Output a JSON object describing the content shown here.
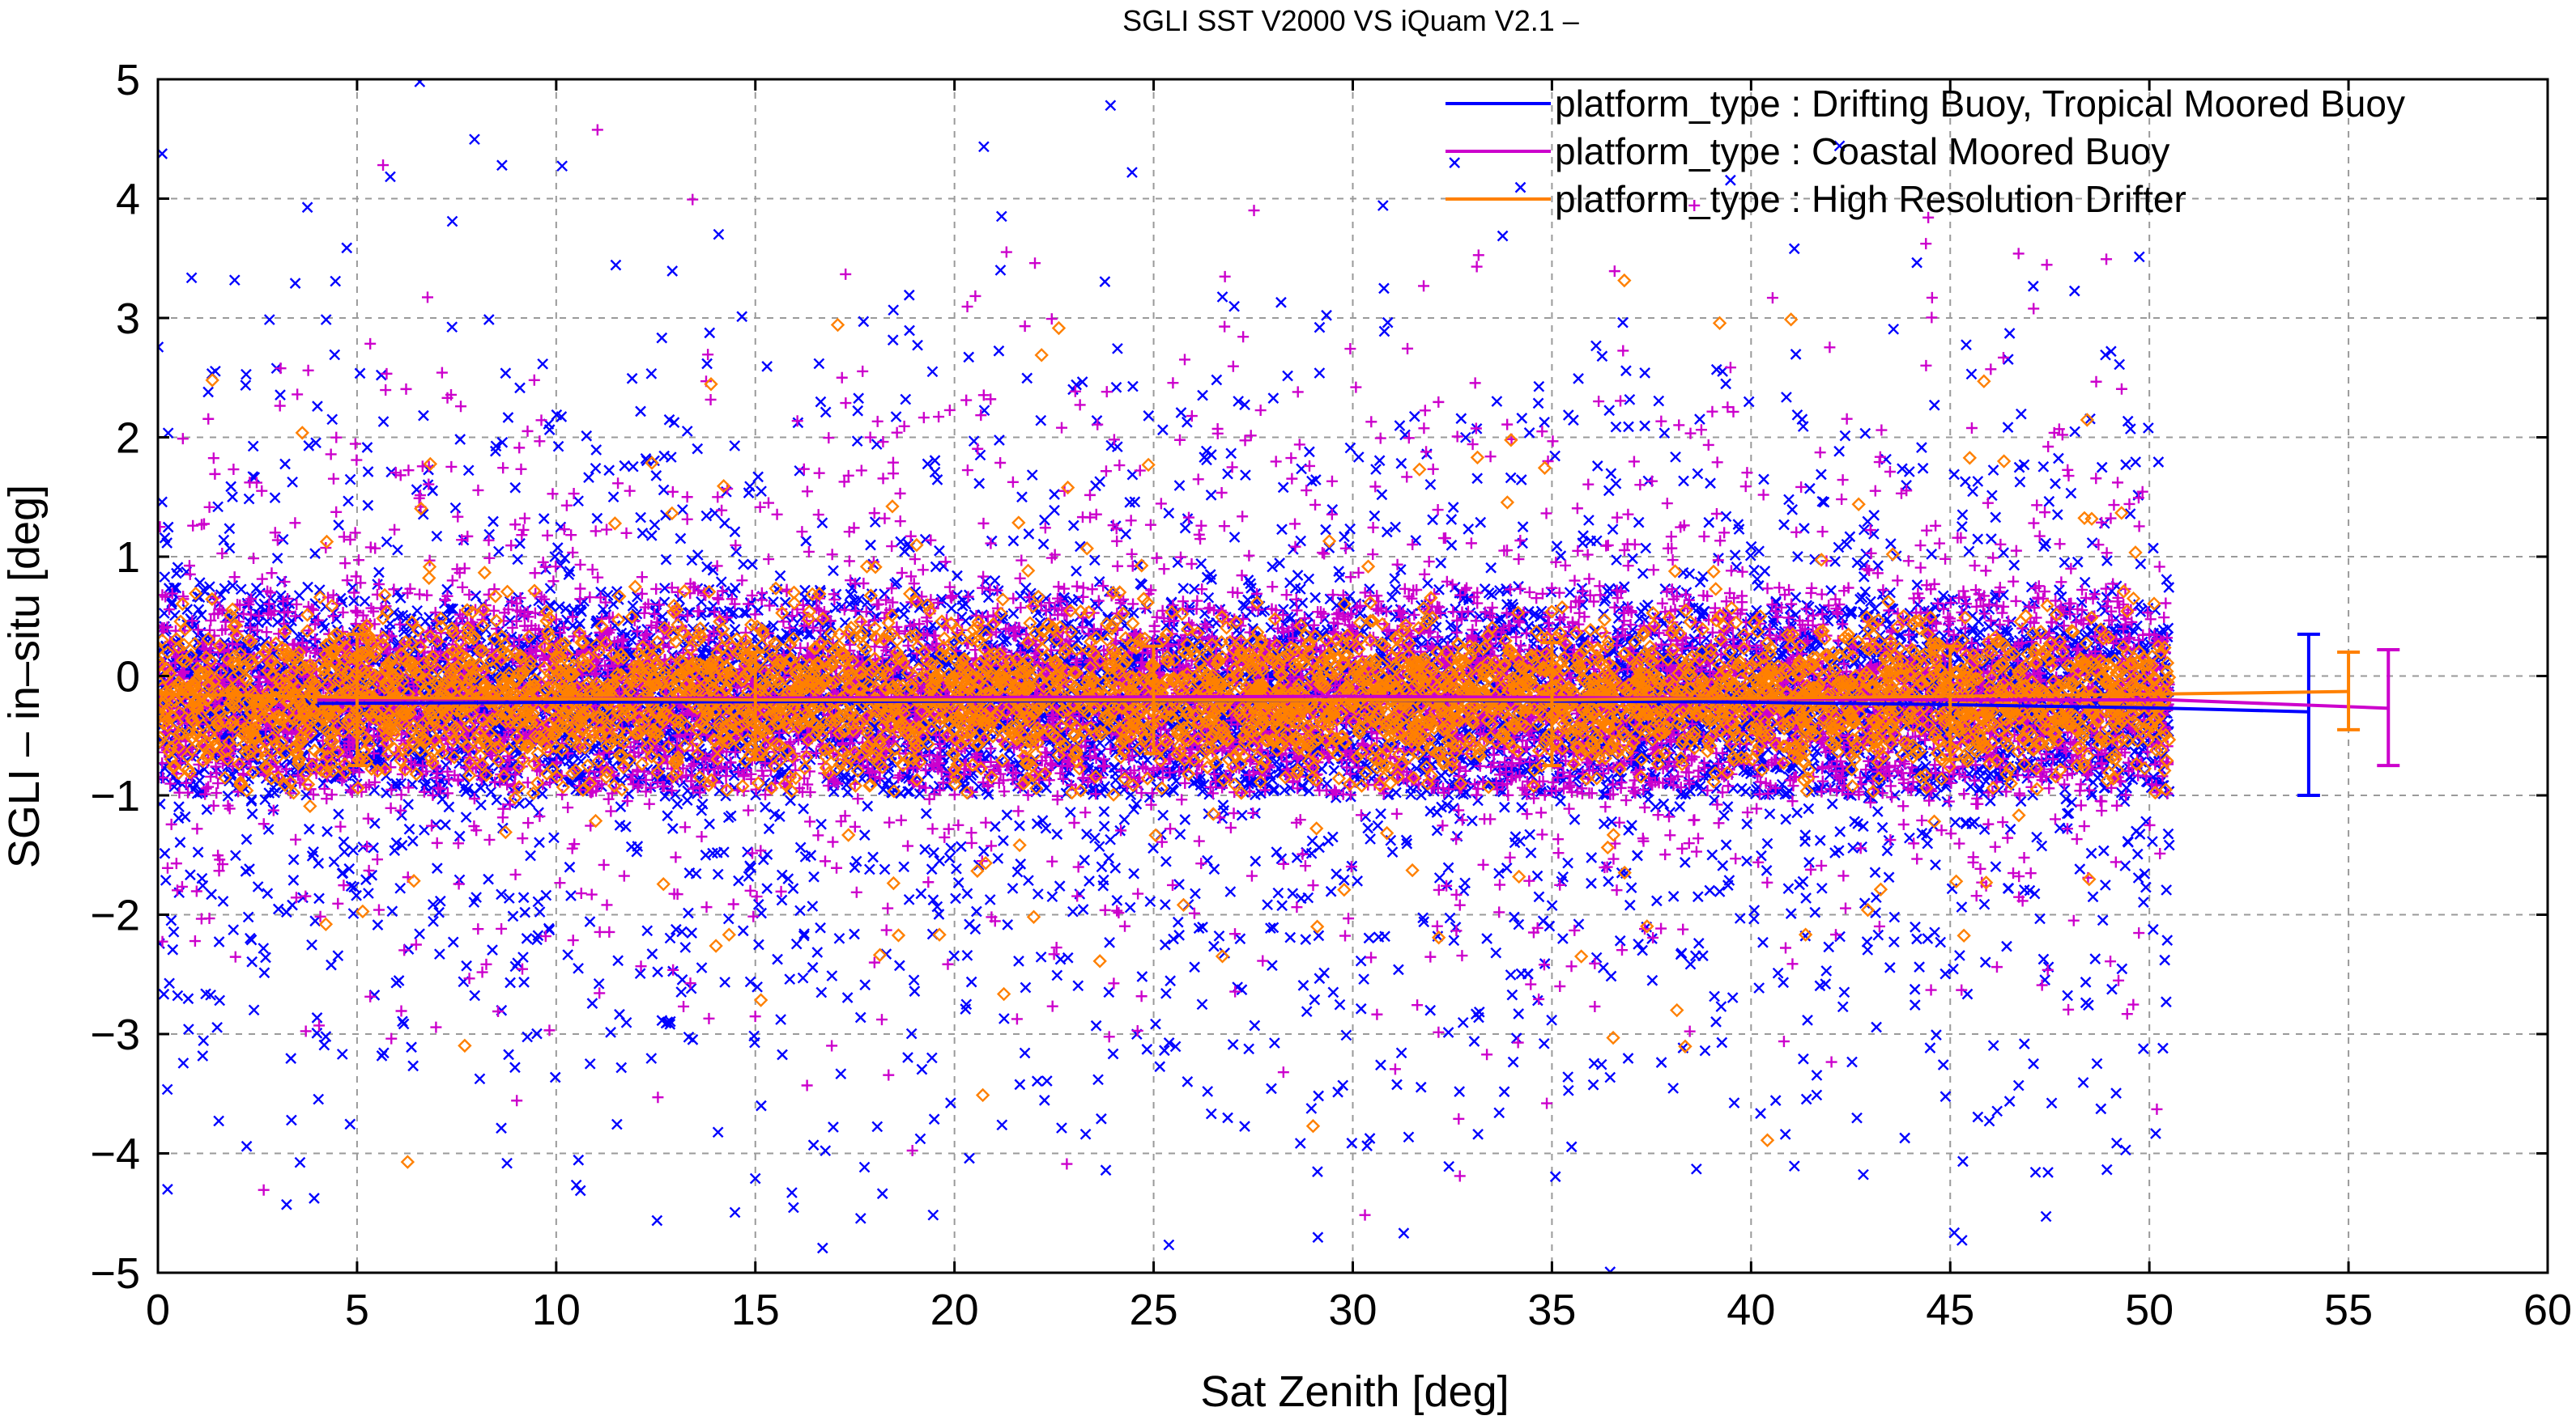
{
  "chart_data": {
    "type": "scatter",
    "title": "SGLI SST V2000 VS iQuam V2.1  –",
    "xlabel": "Sat Zenith [deg]",
    "ylabel": "SGLI – in–situ [deg]",
    "xlim": [
      0,
      60
    ],
    "ylim": [
      -5,
      5
    ],
    "x_ticks": [
      "0",
      "5",
      "10",
      "15",
      "20",
      "25",
      "30",
      "35",
      "40",
      "45",
      "50",
      "55",
      "60"
    ],
    "y_ticks": [
      "5",
      "4",
      "3",
      "2",
      "1",
      "0",
      "−1",
      "−2",
      "−3",
      "−4",
      "−5"
    ],
    "x_tick_values": [
      0,
      5,
      10,
      15,
      20,
      25,
      30,
      35,
      40,
      45,
      50,
      55,
      60
    ],
    "y_tick_values": [
      5,
      4,
      3,
      2,
      1,
      0,
      -1,
      -2,
      -3,
      -4,
      -5
    ],
    "grid": true,
    "legend_position": "top-right",
    "series": [
      {
        "name": "platform_type : Drifting Buoy, Tropical Moored Buoy",
        "color": "#0000ff",
        "marker": "x",
        "scatter_range_x": [
          0,
          50.5
        ],
        "mean_line": {
          "x": [
            4,
            10,
            20,
            30,
            40,
            45,
            50.5
          ],
          "y": [
            -0.23,
            -0.22,
            -0.21,
            -0.2,
            -0.22,
            -0.24,
            -0.27
          ]
        },
        "summary": {
          "x": 54,
          "mean": -0.3,
          "upper": 0.35,
          "lower": -1.0
        }
      },
      {
        "name": "platform_type : Coastal Moored Buoy",
        "color": "#cc00cc",
        "marker": "+",
        "scatter_range_x": [
          0,
          50.5
        ],
        "mean_line": {
          "x": [
            4,
            10,
            20,
            30,
            40,
            45,
            50.5
          ],
          "y": [
            -0.2,
            -0.19,
            -0.18,
            -0.17,
            -0.19,
            -0.2,
            -0.2
          ]
        },
        "summary": {
          "x": 56,
          "mean": -0.27,
          "upper": 0.22,
          "lower": -0.75
        }
      },
      {
        "name": "platform_type : High Resolution Drifter",
        "color": "#ff8000",
        "marker": "diamond",
        "scatter_range_x": [
          0,
          50.5
        ],
        "mean_line": {
          "x": [
            0,
            5,
            15,
            25,
            35,
            45,
            50.5
          ],
          "y": [
            -0.15,
            -0.18,
            -0.2,
            -0.2,
            -0.2,
            -0.17,
            -0.15
          ]
        },
        "errorbars": [
          {
            "x": 5,
            "upper": 0.35,
            "lower": -0.75
          },
          {
            "x": 15,
            "upper": 0.2,
            "lower": -0.7
          },
          {
            "x": 25,
            "upper": 0.25,
            "lower": -0.65
          },
          {
            "x": 35,
            "upper": 0.28,
            "lower": -0.75
          },
          {
            "x": 45,
            "upper": 0.25,
            "lower": -0.7
          }
        ],
        "summary": {
          "x": 55,
          "mean": -0.13,
          "upper": 0.2,
          "lower": -0.45
        }
      }
    ]
  }
}
